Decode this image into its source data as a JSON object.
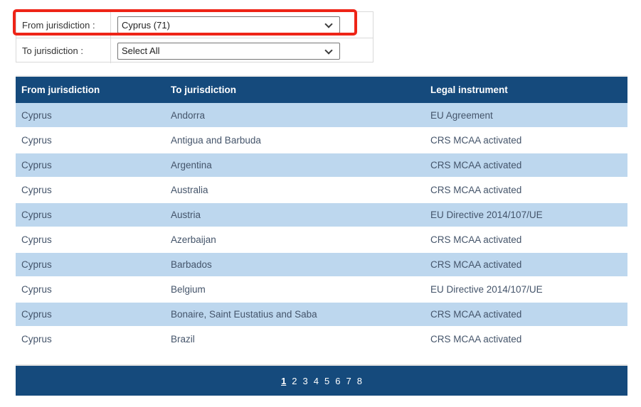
{
  "filters": {
    "rows": [
      {
        "label": "From jurisdiction :",
        "value": "Cyprus (71)",
        "highlighted": true
      },
      {
        "label": "To jurisdiction :",
        "value": "Select All",
        "highlighted": false
      }
    ]
  },
  "table": {
    "columns": [
      "From jurisdiction",
      "To jurisdiction",
      "Legal instrument"
    ],
    "rows": [
      [
        "Cyprus",
        "Andorra",
        "EU Agreement"
      ],
      [
        "Cyprus",
        "Antigua and Barbuda",
        "CRS MCAA activated"
      ],
      [
        "Cyprus",
        "Argentina",
        "CRS MCAA activated"
      ],
      [
        "Cyprus",
        "Australia",
        "CRS MCAA activated"
      ],
      [
        "Cyprus",
        "Austria",
        "EU Directive 2014/107/UE"
      ],
      [
        "Cyprus",
        "Azerbaijan",
        "CRS MCAA activated"
      ],
      [
        "Cyprus",
        "Barbados",
        "CRS MCAA activated"
      ],
      [
        "Cyprus",
        "Belgium",
        "EU Directive 2014/107/UE"
      ],
      [
        "Cyprus",
        "Bonaire, Saint Eustatius and Saba",
        "CRS MCAA activated"
      ],
      [
        "Cyprus",
        "Brazil",
        "CRS MCAA activated"
      ]
    ]
  },
  "pagination": {
    "pages": [
      "1",
      "2",
      "3",
      "4",
      "5",
      "6",
      "7",
      "8"
    ],
    "current": "1"
  },
  "colors": {
    "header_navy": "#154a7c",
    "row_light_blue": "#bdd7ee",
    "cell_text": "#44546a",
    "annotation_red": "#ee2417"
  }
}
